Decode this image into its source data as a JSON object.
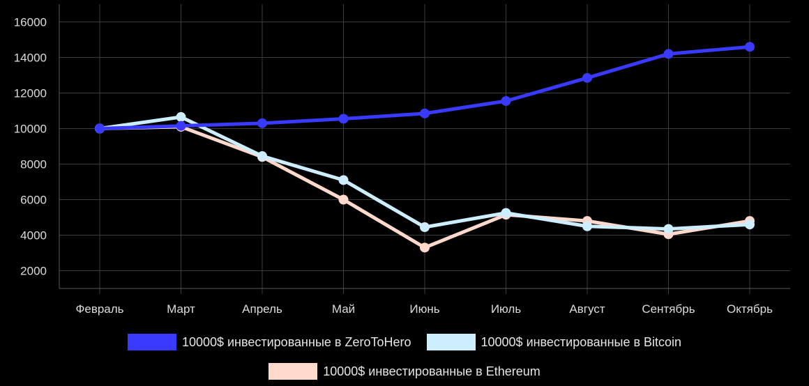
{
  "chart_data": {
    "type": "line",
    "categories": [
      "Февраль",
      "Март",
      "Апрель",
      "Май",
      "Июнь",
      "Июль",
      "Август",
      "Сентябрь",
      "Октябрь"
    ],
    "ylim": [
      1000,
      17000
    ],
    "yticks": [
      2000,
      4000,
      6000,
      8000,
      10000,
      12000,
      14000,
      16000
    ],
    "grid": true,
    "legend_position": "bottom",
    "series": [
      {
        "name": "10000$ инвестированные в ZeroToHero",
        "color": "#3a3aff",
        "values": [
          10000,
          10150,
          10300,
          10550,
          10850,
          11550,
          12850,
          14200,
          14600
        ]
      },
      {
        "name": "10000$ инвестированные в Bitcoin",
        "color": "#cdeeff",
        "values": [
          10000,
          10650,
          8450,
          7100,
          4450,
          5250,
          4500,
          4350,
          4600
        ]
      },
      {
        "name": "10000$ инвестированные в Ethereum",
        "color": "#ffd9cc",
        "values": [
          10000,
          10100,
          8400,
          6000,
          3300,
          5150,
          4800,
          4050,
          4800
        ]
      }
    ]
  }
}
